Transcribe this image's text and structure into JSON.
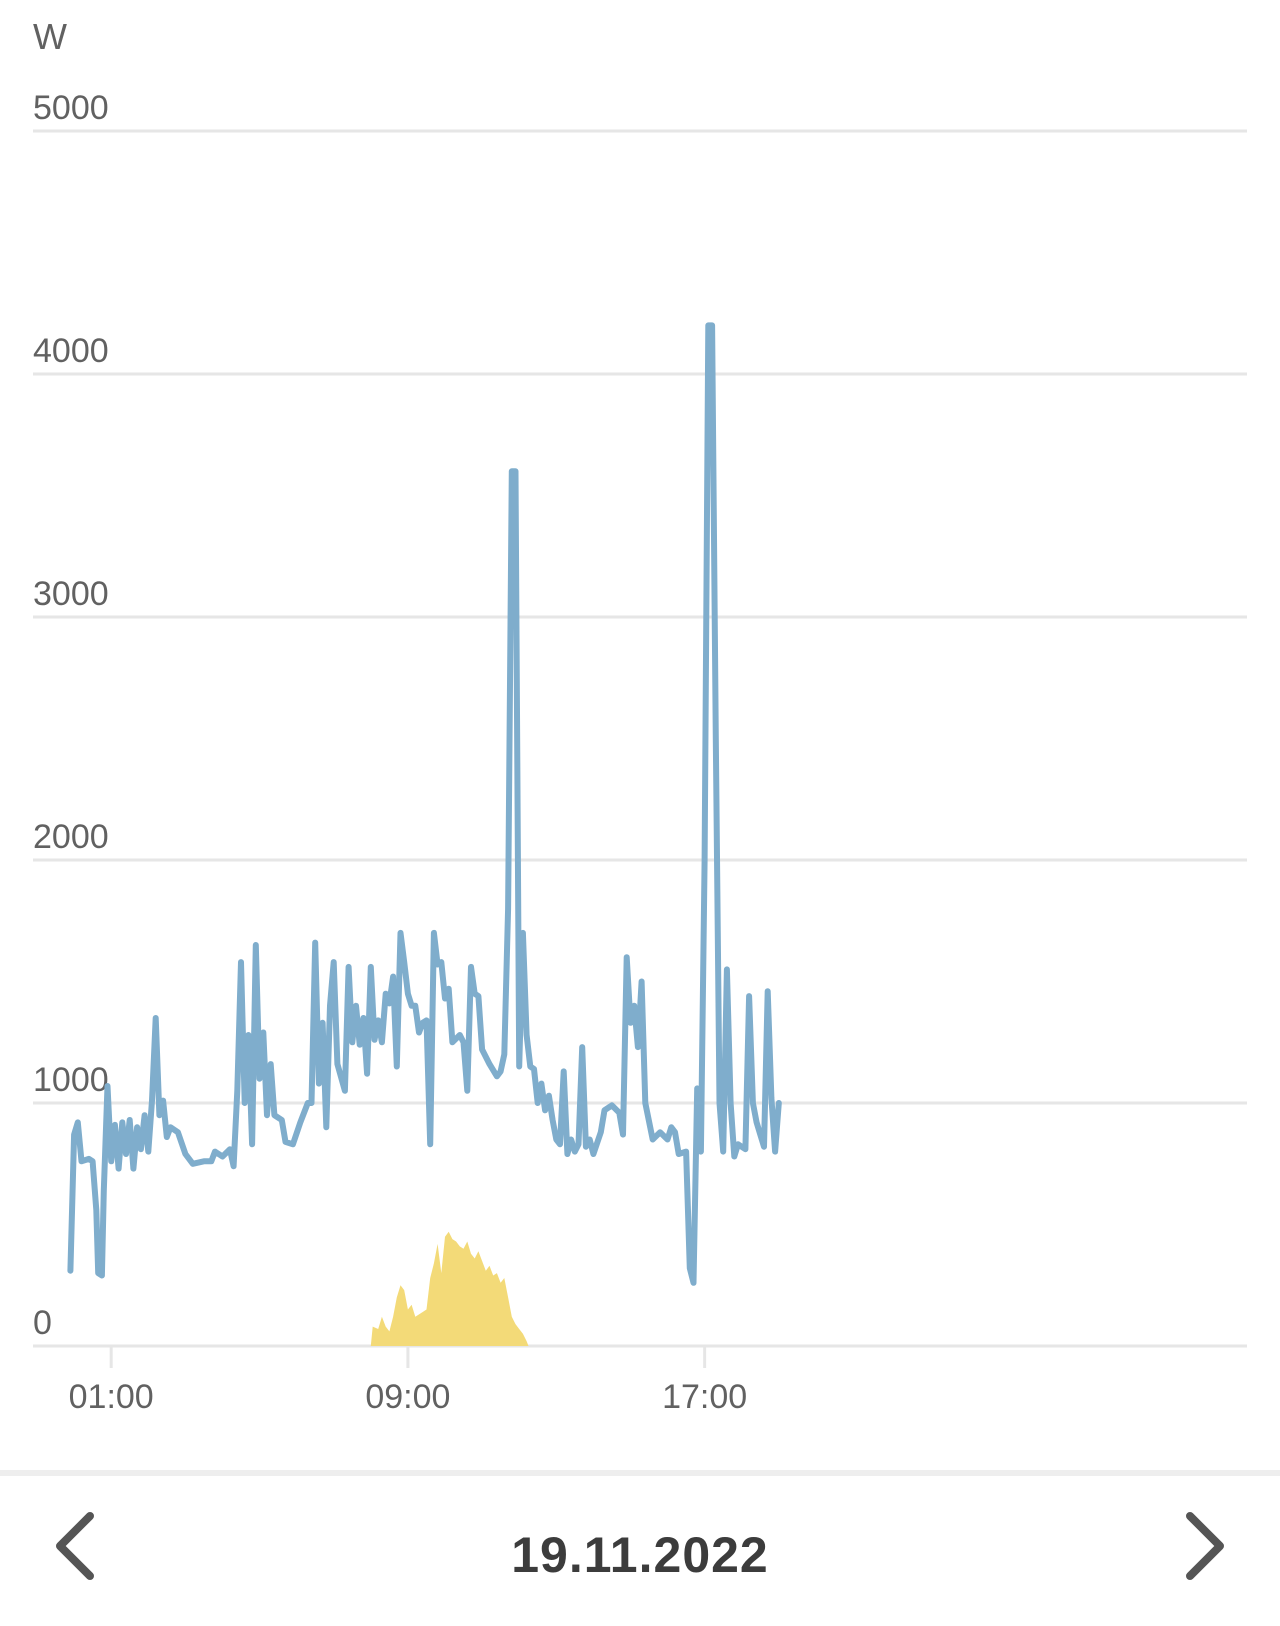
{
  "chart_data": {
    "type": "line",
    "unit_label": "W",
    "ylim": [
      0,
      5000
    ],
    "y_ticks": [
      0,
      1000,
      2000,
      3000,
      4000,
      5000
    ],
    "x_range_hours": [
      -1,
      32
    ],
    "x_ticks": [
      {
        "hour": 1,
        "label": "01:00"
      },
      {
        "hour": 9,
        "label": "09:00"
      },
      {
        "hour": 17,
        "label": "17:00"
      }
    ],
    "grid": true,
    "colors": {
      "consumption": "#7fadcc",
      "production": "#f3da78",
      "grid": "#e6e6e6"
    },
    "series": [
      {
        "key": "consumption",
        "kind": "line",
        "points": [
          [
            -0.1,
            310
          ],
          [
            0.0,
            870
          ],
          [
            0.1,
            920
          ],
          [
            0.2,
            760
          ],
          [
            0.4,
            770
          ],
          [
            0.5,
            760
          ],
          [
            0.6,
            560
          ],
          [
            0.65,
            300
          ],
          [
            0.75,
            290
          ],
          [
            0.8,
            640
          ],
          [
            0.9,
            1070
          ],
          [
            1.0,
            760
          ],
          [
            1.1,
            910
          ],
          [
            1.2,
            730
          ],
          [
            1.3,
            920
          ],
          [
            1.4,
            790
          ],
          [
            1.5,
            930
          ],
          [
            1.6,
            730
          ],
          [
            1.7,
            900
          ],
          [
            1.8,
            810
          ],
          [
            1.9,
            950
          ],
          [
            2.0,
            800
          ],
          [
            2.1,
            1010
          ],
          [
            2.2,
            1350
          ],
          [
            2.3,
            950
          ],
          [
            2.4,
            1010
          ],
          [
            2.5,
            860
          ],
          [
            2.6,
            900
          ],
          [
            2.8,
            880
          ],
          [
            3.0,
            790
          ],
          [
            3.2,
            750
          ],
          [
            3.5,
            760
          ],
          [
            3.7,
            760
          ],
          [
            3.8,
            800
          ],
          [
            4.0,
            780
          ],
          [
            4.2,
            810
          ],
          [
            4.3,
            740
          ],
          [
            4.4,
            1050
          ],
          [
            4.5,
            1580
          ],
          [
            4.6,
            1000
          ],
          [
            4.7,
            1280
          ],
          [
            4.8,
            830
          ],
          [
            4.9,
            1650
          ],
          [
            5.0,
            1100
          ],
          [
            5.1,
            1290
          ],
          [
            5.2,
            950
          ],
          [
            5.3,
            1160
          ],
          [
            5.4,
            950
          ],
          [
            5.6,
            930
          ],
          [
            5.7,
            840
          ],
          [
            5.9,
            830
          ],
          [
            6.1,
            920
          ],
          [
            6.3,
            1000
          ],
          [
            6.4,
            1000
          ],
          [
            6.5,
            1660
          ],
          [
            6.6,
            1080
          ],
          [
            6.7,
            1330
          ],
          [
            6.8,
            900
          ],
          [
            6.9,
            1400
          ],
          [
            7.0,
            1580
          ],
          [
            7.1,
            1160
          ],
          [
            7.3,
            1050
          ],
          [
            7.4,
            1560
          ],
          [
            7.5,
            1250
          ],
          [
            7.6,
            1400
          ],
          [
            7.7,
            1240
          ],
          [
            7.8,
            1350
          ],
          [
            7.9,
            1120
          ],
          [
            8.0,
            1560
          ],
          [
            8.1,
            1260
          ],
          [
            8.2,
            1340
          ],
          [
            8.3,
            1250
          ],
          [
            8.4,
            1450
          ],
          [
            8.5,
            1410
          ],
          [
            8.6,
            1520
          ],
          [
            8.7,
            1150
          ],
          [
            8.8,
            1700
          ],
          [
            8.9,
            1580
          ],
          [
            9.0,
            1450
          ],
          [
            9.1,
            1400
          ],
          [
            9.2,
            1400
          ],
          [
            9.3,
            1290
          ],
          [
            9.4,
            1330
          ],
          [
            9.5,
            1340
          ],
          [
            9.6,
            830
          ],
          [
            9.7,
            1700
          ],
          [
            9.8,
            1570
          ],
          [
            9.9,
            1580
          ],
          [
            10.0,
            1430
          ],
          [
            10.1,
            1470
          ],
          [
            10.2,
            1250
          ],
          [
            10.4,
            1280
          ],
          [
            10.5,
            1250
          ],
          [
            10.6,
            1050
          ],
          [
            10.7,
            1560
          ],
          [
            10.8,
            1450
          ],
          [
            10.9,
            1440
          ],
          [
            11.0,
            1220
          ],
          [
            11.2,
            1160
          ],
          [
            11.4,
            1110
          ],
          [
            11.5,
            1130
          ],
          [
            11.6,
            1200
          ],
          [
            11.7,
            1800
          ],
          [
            11.8,
            3600
          ],
          [
            11.9,
            3600
          ],
          [
            12.0,
            1150
          ],
          [
            12.1,
            1700
          ],
          [
            12.2,
            1280
          ],
          [
            12.3,
            1150
          ],
          [
            12.4,
            1140
          ],
          [
            12.5,
            1000
          ],
          [
            12.6,
            1080
          ],
          [
            12.7,
            970
          ],
          [
            12.8,
            1030
          ],
          [
            12.9,
            930
          ],
          [
            13.0,
            850
          ],
          [
            13.1,
            830
          ],
          [
            13.2,
            1130
          ],
          [
            13.3,
            790
          ],
          [
            13.4,
            850
          ],
          [
            13.5,
            800
          ],
          [
            13.6,
            830
          ],
          [
            13.7,
            1230
          ],
          [
            13.8,
            820
          ],
          [
            13.9,
            850
          ],
          [
            14.0,
            790
          ],
          [
            14.2,
            880
          ],
          [
            14.3,
            970
          ],
          [
            14.5,
            990
          ],
          [
            14.7,
            960
          ],
          [
            14.8,
            870
          ],
          [
            14.9,
            1600
          ],
          [
            15.0,
            1330
          ],
          [
            15.1,
            1400
          ],
          [
            15.2,
            1230
          ],
          [
            15.3,
            1500
          ],
          [
            15.4,
            1000
          ],
          [
            15.6,
            850
          ],
          [
            15.8,
            880
          ],
          [
            16.0,
            850
          ],
          [
            16.1,
            900
          ],
          [
            16.2,
            880
          ],
          [
            16.3,
            790
          ],
          [
            16.5,
            800
          ],
          [
            16.6,
            320
          ],
          [
            16.7,
            260
          ],
          [
            16.8,
            1060
          ],
          [
            16.9,
            800
          ],
          [
            17.0,
            2000
          ],
          [
            17.1,
            4200
          ],
          [
            17.2,
            4200
          ],
          [
            17.3,
            2500
          ],
          [
            17.4,
            1000
          ],
          [
            17.5,
            800
          ],
          [
            17.6,
            1550
          ],
          [
            17.7,
            1000
          ],
          [
            17.8,
            780
          ],
          [
            17.9,
            830
          ],
          [
            18.0,
            820
          ],
          [
            18.1,
            810
          ],
          [
            18.2,
            1440
          ],
          [
            18.3,
            1000
          ],
          [
            18.4,
            920
          ],
          [
            18.5,
            870
          ],
          [
            18.6,
            820
          ],
          [
            18.7,
            1460
          ],
          [
            18.8,
            1020
          ],
          [
            18.9,
            800
          ],
          [
            19.0,
            1000
          ]
        ]
      },
      {
        "key": "production",
        "kind": "area",
        "points": [
          [
            8.0,
            0
          ],
          [
            8.05,
            80
          ],
          [
            8.2,
            70
          ],
          [
            8.3,
            120
          ],
          [
            8.4,
            80
          ],
          [
            8.5,
            60
          ],
          [
            8.6,
            120
          ],
          [
            8.7,
            200
          ],
          [
            8.8,
            250
          ],
          [
            8.9,
            230
          ],
          [
            9.0,
            150
          ],
          [
            9.1,
            170
          ],
          [
            9.2,
            120
          ],
          [
            9.3,
            130
          ],
          [
            9.4,
            140
          ],
          [
            9.5,
            150
          ],
          [
            9.6,
            280
          ],
          [
            9.7,
            340
          ],
          [
            9.8,
            420
          ],
          [
            9.9,
            300
          ],
          [
            10.0,
            450
          ],
          [
            10.1,
            470
          ],
          [
            10.2,
            440
          ],
          [
            10.3,
            430
          ],
          [
            10.4,
            410
          ],
          [
            10.5,
            400
          ],
          [
            10.6,
            430
          ],
          [
            10.7,
            380
          ],
          [
            10.8,
            360
          ],
          [
            10.9,
            390
          ],
          [
            11.0,
            350
          ],
          [
            11.1,
            310
          ],
          [
            11.2,
            330
          ],
          [
            11.3,
            290
          ],
          [
            11.4,
            300
          ],
          [
            11.5,
            260
          ],
          [
            11.6,
            280
          ],
          [
            11.7,
            200
          ],
          [
            11.8,
            120
          ],
          [
            11.9,
            90
          ],
          [
            12.0,
            70
          ],
          [
            12.1,
            50
          ],
          [
            12.2,
            20
          ],
          [
            12.25,
            0
          ]
        ]
      }
    ]
  },
  "footer": {
    "date": "19.11.2022",
    "prev_icon": "chevron-left-icon",
    "next_icon": "chevron-right-icon"
  }
}
